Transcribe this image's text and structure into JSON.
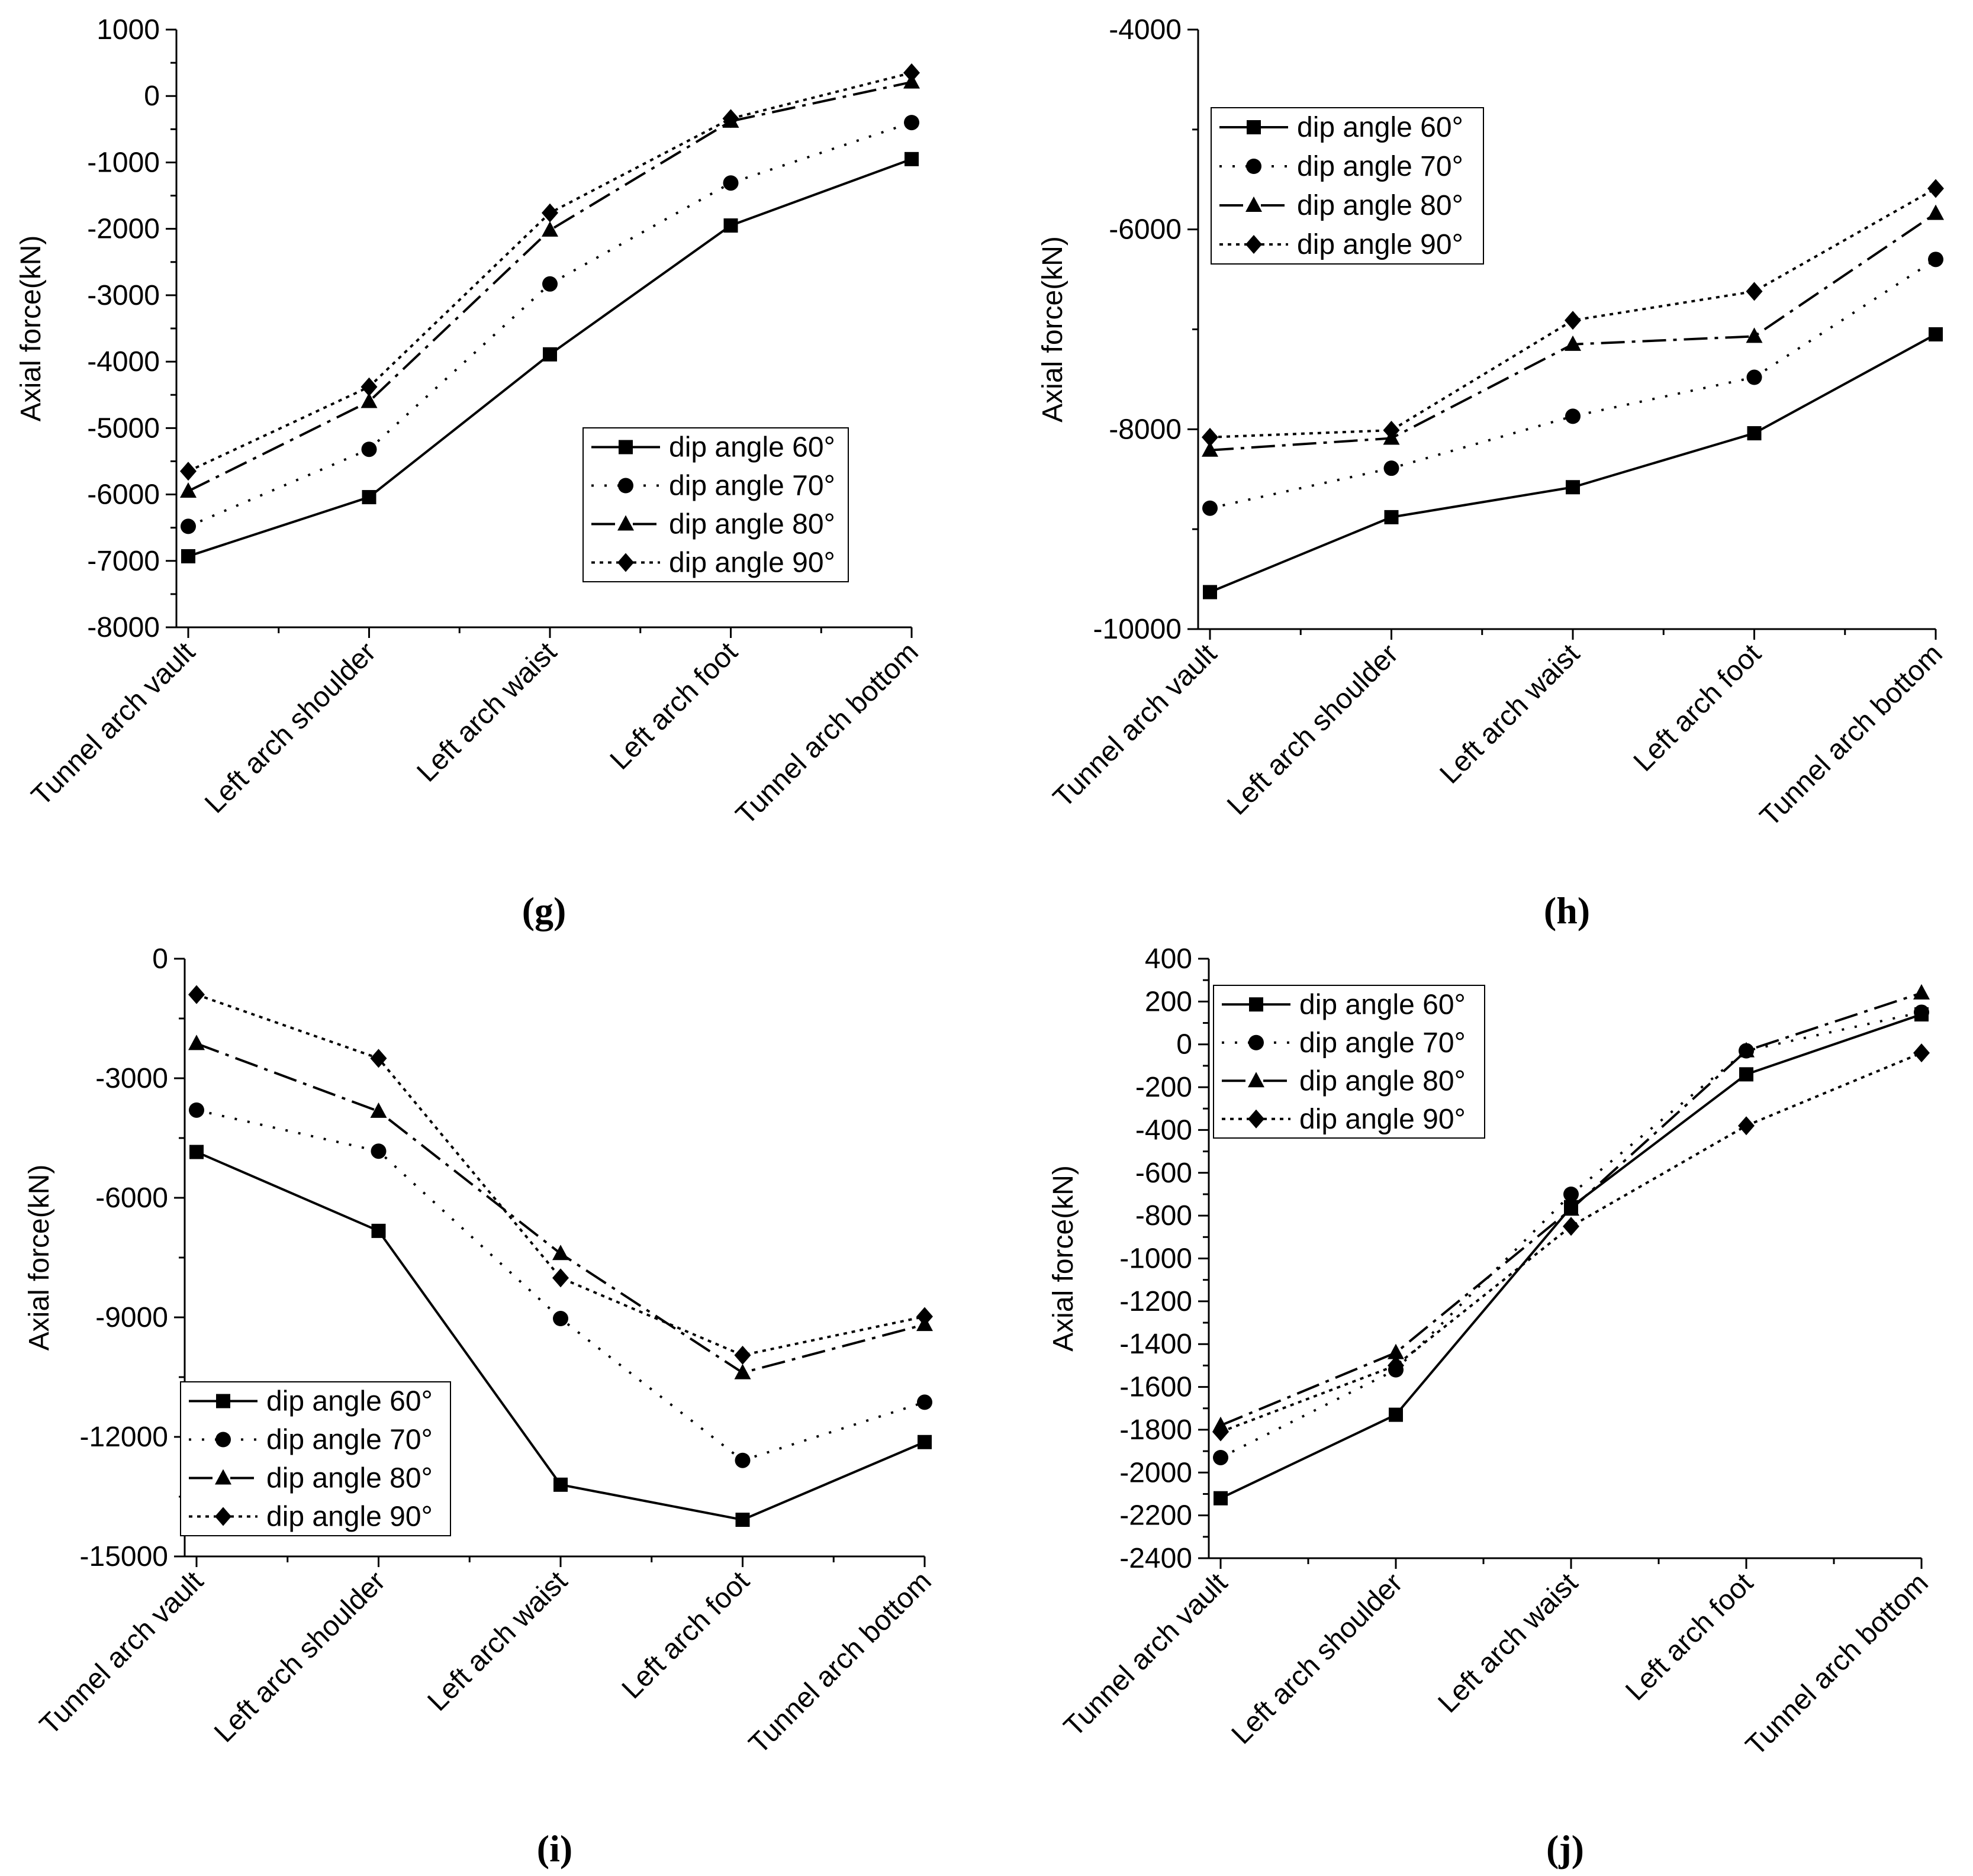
{
  "chart_data": [
    {
      "id": "g",
      "type": "line",
      "caption_letter": "g",
      "ylabel": "Axial force(kN)",
      "xlabel": "",
      "categories": [
        "Tunnel arch vault",
        "Left arch shoulder",
        "Left arch waist",
        "Left arch foot",
        "Tunnel arch bottom"
      ],
      "ylim": [
        -8000,
        1000
      ],
      "yticks": [
        -8000,
        -7000,
        -6000,
        -5000,
        -4000,
        -3000,
        -2000,
        -1000,
        0,
        1000
      ],
      "tick_labels": [
        "-8000",
        "-7000",
        "-6000",
        "-5000",
        "-4000",
        "-3000",
        "-2000",
        "-1000",
        "0",
        "1000"
      ],
      "legend_position": "lower-right",
      "series": [
        {
          "name": "dip angle 60°",
          "values": [
            -6930,
            -6040,
            -3890,
            -1950,
            -950
          ]
        },
        {
          "name": "dip angle 70°",
          "values": [
            -6480,
            -5320,
            -2830,
            -1310,
            -400
          ]
        },
        {
          "name": "dip angle 80°",
          "values": [
            -5950,
            -4600,
            -2020,
            -380,
            210
          ]
        },
        {
          "name": "dip angle 90°",
          "values": [
            -5650,
            -4380,
            -1760,
            -340,
            350
          ]
        }
      ]
    },
    {
      "id": "h",
      "type": "line",
      "caption_letter": "h",
      "ylabel": "Axial force(kN)",
      "xlabel": "",
      "categories": [
        "Tunnel arch vault",
        "Left arch shoulder",
        "Left arch waist",
        "Left arch foot",
        "Tunnel arch bottom"
      ],
      "ylim": [
        -10000,
        -4000
      ],
      "yticks": [
        -10000,
        -8000,
        -6000,
        -4000
      ],
      "tick_labels": [
        "-10000",
        "-8000",
        "-6000",
        "-4000"
      ],
      "legend_position": "upper-left",
      "series": [
        {
          "name": "dip angle 60°",
          "values": [
            -9630,
            -8880,
            -8580,
            -8040,
            -7050
          ]
        },
        {
          "name": "dip angle 70°",
          "values": [
            -8790,
            -8390,
            -7870,
            -7480,
            -6300
          ]
        },
        {
          "name": "dip angle 80°",
          "values": [
            -8210,
            -8090,
            -7150,
            -7070,
            -5840
          ]
        },
        {
          "name": "dip angle 90°",
          "values": [
            -8080,
            -8010,
            -6910,
            -6620,
            -5590
          ]
        }
      ]
    },
    {
      "id": "i",
      "type": "line",
      "caption_letter": "i",
      "ylabel": "Axial force(kN)",
      "xlabel": "",
      "categories": [
        "Tunnel arch vault",
        "Left arch shoulder",
        "Left arch waist",
        "Left arch foot",
        "Tunnel arch bottom"
      ],
      "ylim": [
        -15000,
        0
      ],
      "yticks": [
        -15000,
        -12000,
        -9000,
        -6000,
        -3000,
        0
      ],
      "tick_labels": [
        "-15000",
        "-12000",
        "-9000",
        "-6000",
        "-3000",
        "0"
      ],
      "legend_position": "lower-left",
      "series": [
        {
          "name": "dip angle 60°",
          "values": [
            -4850,
            -6830,
            -13200,
            -14080,
            -12130
          ]
        },
        {
          "name": "dip angle 70°",
          "values": [
            -3800,
            -4830,
            -9030,
            -12590,
            -11130
          ]
        },
        {
          "name": "dip angle 80°",
          "values": [
            -2130,
            -3830,
            -7400,
            -10390,
            -9180
          ]
        },
        {
          "name": "dip angle 90°",
          "values": [
            -900,
            -2500,
            -8010,
            -9950,
            -8980
          ]
        }
      ]
    },
    {
      "id": "j",
      "type": "line",
      "caption_letter": "j",
      "ylabel": "Axial force(kN)",
      "xlabel": "",
      "categories": [
        "Tunnel arch vault",
        "Left arch shoulder",
        "Left arch waist",
        "Left arch foot",
        "Tunnel arch bottom"
      ],
      "ylim": [
        -2400,
        400
      ],
      "yticks": [
        -2400,
        -2200,
        -2000,
        -1800,
        -1600,
        -1400,
        -1200,
        -1000,
        -800,
        -600,
        -400,
        -200,
        0,
        200,
        400
      ],
      "tick_labels": [
        "-2400",
        "-2200",
        "-2000",
        "-1800",
        "-1600",
        "-1400",
        "-1200",
        "-1000",
        "-800",
        "-600",
        "-400",
        "-200",
        "0",
        "200",
        "400"
      ],
      "legend_position": "upper-left",
      "series": [
        {
          "name": "dip angle 60°",
          "values": [
            -2120,
            -1730,
            -760,
            -140,
            140
          ]
        },
        {
          "name": "dip angle 70°",
          "values": [
            -1930,
            -1520,
            -700,
            -30,
            150
          ]
        },
        {
          "name": "dip angle 80°",
          "values": [
            -1780,
            -1440,
            -770,
            -30,
            240
          ]
        },
        {
          "name": "dip angle 90°",
          "values": [
            -1810,
            -1500,
            -850,
            -380,
            -40
          ]
        }
      ]
    }
  ]
}
